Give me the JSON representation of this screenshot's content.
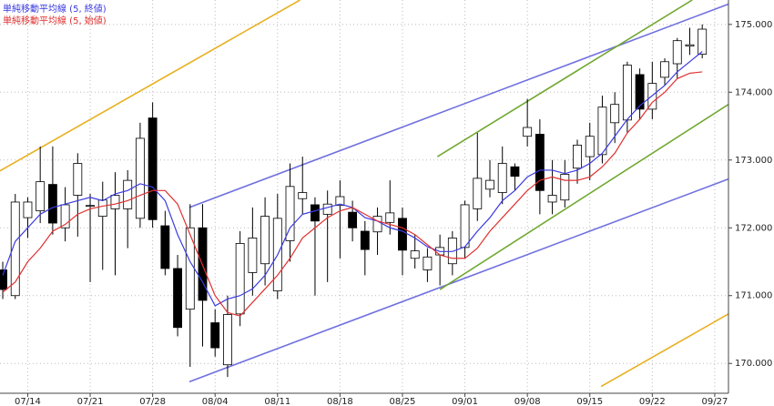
{
  "chart_data": {
    "type": "candlestick",
    "xlim": [
      -0.22,
      58.1
    ],
    "ylim": [
      169.56,
      175.36
    ],
    "yticks": [
      {
        "value": 170,
        "label": "170.000"
      },
      {
        "value": 171,
        "label": "171.000"
      },
      {
        "value": 172,
        "label": "172.000"
      },
      {
        "value": 173,
        "label": "173.000"
      },
      {
        "value": 174,
        "label": "174.000"
      },
      {
        "value": 175,
        "label": "175.000"
      }
    ],
    "xticks": [
      {
        "value": 2,
        "label": "07/14"
      },
      {
        "value": 7,
        "label": "07/21"
      },
      {
        "value": 12,
        "label": "07/28"
      },
      {
        "value": 17,
        "label": "08/04"
      },
      {
        "value": 22,
        "label": "08/11"
      },
      {
        "value": 27,
        "label": "08/18"
      },
      {
        "value": 32,
        "label": "08/25"
      },
      {
        "value": 37,
        "label": "09/01"
      },
      {
        "value": 42,
        "label": "09/08"
      },
      {
        "value": 47,
        "label": "09/15"
      },
      {
        "value": 52,
        "label": "09/22"
      },
      {
        "value": 57,
        "label": "09/27"
      }
    ],
    "grid": true,
    "up_color": "#ffffff",
    "down_color": "#000000",
    "candles": {
      "open": [
        171.38,
        171.0,
        172.15,
        172.25,
        172.64,
        172.0,
        172.48,
        172.32,
        172.17,
        172.28,
        172.28,
        172.14,
        173.62,
        172.03,
        171.4,
        170.8,
        172.0,
        170.6,
        169.98,
        170.73,
        171.34,
        171.47,
        171.07,
        171.81,
        172.43,
        172.34,
        172.2,
        172.33,
        172.23,
        171.95,
        171.94,
        172.08,
        172.14,
        171.55,
        171.38,
        171.6,
        171.47,
        171.71,
        172.28,
        172.57,
        172.52,
        172.9,
        173.35,
        173.38,
        172.38,
        172.41,
        172.88,
        173.05,
        173.08,
        173.55,
        173.59,
        174.26,
        173.75,
        174.22,
        174.42,
        174.68,
        174.56
      ],
      "high": [
        171.5,
        172.5,
        172.45,
        173.2,
        173.2,
        172.6,
        173.1,
        172.5,
        172.68,
        172.82,
        172.85,
        173.55,
        173.85,
        172.25,
        171.6,
        172.35,
        172.35,
        170.8,
        171.0,
        171.95,
        172.3,
        172.45,
        172.5,
        172.95,
        173.05,
        172.45,
        172.55,
        172.7,
        172.4,
        172.1,
        172.3,
        172.7,
        172.3,
        171.9,
        171.7,
        171.9,
        171.95,
        172.4,
        173.4,
        173.0,
        173.2,
        172.95,
        173.9,
        173.6,
        173.0,
        173.0,
        173.3,
        173.55,
        173.95,
        174.0,
        174.45,
        174.35,
        174.45,
        174.5,
        174.8,
        174.95,
        175.0
      ],
      "low": [
        170.95,
        170.95,
        171.85,
        172.07,
        171.9,
        171.8,
        171.87,
        171.2,
        171.38,
        171.3,
        171.7,
        172.0,
        172.0,
        171.3,
        170.4,
        169.95,
        170.25,
        170.1,
        169.8,
        170.55,
        171.0,
        171.15,
        170.95,
        171.5,
        172.2,
        171.0,
        171.2,
        171.55,
        171.8,
        171.3,
        171.6,
        171.9,
        171.3,
        171.4,
        171.2,
        171.15,
        171.3,
        171.55,
        172.1,
        172.45,
        172.35,
        172.55,
        173.2,
        172.2,
        172.2,
        172.3,
        172.65,
        172.7,
        172.95,
        173.25,
        173.4,
        173.6,
        173.6,
        174.1,
        174.2,
        174.55,
        174.5
      ],
      "close": [
        171.09,
        172.38,
        172.38,
        172.68,
        172.07,
        172.34,
        172.95,
        172.33,
        172.41,
        172.48,
        172.7,
        173.32,
        172.12,
        171.4,
        170.53,
        172.0,
        170.93,
        170.23,
        170.72,
        171.77,
        171.85,
        172.17,
        172.14,
        172.61,
        172.52,
        172.1,
        172.35,
        172.46,
        172.0,
        171.68,
        172.17,
        172.22,
        171.67,
        171.66,
        171.57,
        171.71,
        171.85,
        172.34,
        172.73,
        172.7,
        172.95,
        172.76,
        173.48,
        172.55,
        172.48,
        172.79,
        173.22,
        173.35,
        173.78,
        173.82,
        174.4,
        173.75,
        174.13,
        174.45,
        174.76,
        174.7,
        174.93
      ]
    },
    "series": [
      {
        "name": "単純移動平均線 (5, 終値)",
        "color": "#3a3ae0",
        "values": [
          171.3,
          171.8,
          172.0,
          172.2,
          172.3,
          172.35,
          172.4,
          172.45,
          172.4,
          172.5,
          172.55,
          172.65,
          172.6,
          172.4,
          171.9,
          171.5,
          171.2,
          170.85,
          170.95,
          171.0,
          171.1,
          171.3,
          171.6,
          172.0,
          172.2,
          172.25,
          172.3,
          172.35,
          172.3,
          172.15,
          172.1,
          172.0,
          171.95,
          171.85,
          171.72,
          171.65,
          171.65,
          171.72,
          171.95,
          172.15,
          172.4,
          172.55,
          172.75,
          172.85,
          172.85,
          172.8,
          172.85,
          172.95,
          173.1,
          173.35,
          173.6,
          173.8,
          173.95,
          174.1,
          174.3,
          174.45,
          174.6
        ]
      },
      {
        "name": "単純移動平均線 (5, 始値)",
        "color": "#e03030",
        "values": [
          171.05,
          171.2,
          171.5,
          171.7,
          171.95,
          172.05,
          172.2,
          172.28,
          172.32,
          172.35,
          172.4,
          172.48,
          172.55,
          172.55,
          172.35,
          171.9,
          171.45,
          171.0,
          170.75,
          170.7,
          170.9,
          171.1,
          171.3,
          171.55,
          171.85,
          172.0,
          172.15,
          172.25,
          172.3,
          172.2,
          172.1,
          172.05,
          172.0,
          171.9,
          171.75,
          171.6,
          171.55,
          171.55,
          171.7,
          171.95,
          172.15,
          172.35,
          172.55,
          172.7,
          172.75,
          172.7,
          172.7,
          172.75,
          172.9,
          173.1,
          173.4,
          173.6,
          173.85,
          174.0,
          174.2,
          174.28,
          174.3
        ]
      }
    ],
    "trendlines": [
      {
        "color": "#e8b020",
        "x": [
          -0.22,
          23.8
        ],
        "y": [
          172.84,
          175.36
        ]
      },
      {
        "color": "#e8b020",
        "x": [
          47.9,
          58.1
        ],
        "y": [
          169.66,
          170.73
        ]
      },
      {
        "color": "#7070e0",
        "x": [
          14.94,
          58.1
        ],
        "y": [
          172.3,
          175.3
        ]
      },
      {
        "color": "#7070e0",
        "x": [
          14.94,
          58.1
        ],
        "y": [
          169.73,
          172.72
        ]
      },
      {
        "color": "#70a830",
        "x": [
          34.8,
          55.2
        ],
        "y": [
          173.05,
          175.36
        ]
      },
      {
        "color": "#70a830",
        "x": [
          35.0,
          58.1
        ],
        "y": [
          171.09,
          173.82
        ]
      }
    ]
  }
}
